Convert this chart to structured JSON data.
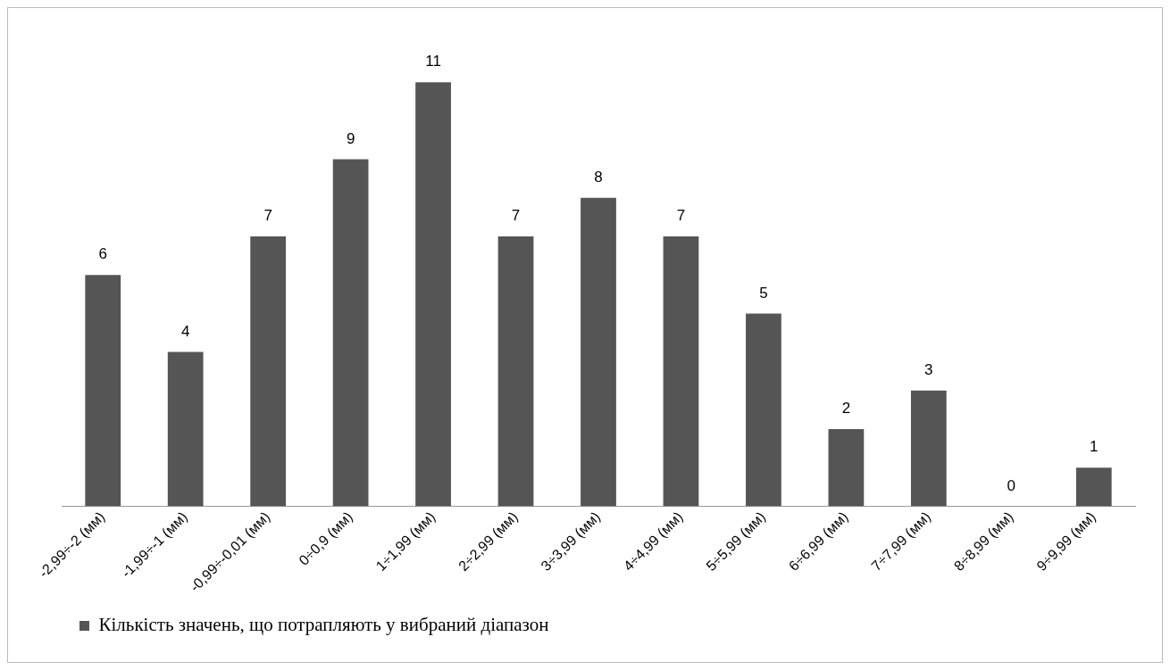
{
  "chart_data": {
    "type": "bar",
    "categories": [
      "-2,99÷-2 (мм)",
      "-1,99÷-1 (мм)",
      "-0,99÷-0,01 (мм)",
      "0÷0,9 (мм)",
      "1÷1,99 (мм)",
      "2÷2,99 (мм)",
      "3÷3,99 (мм)",
      "4÷4,99 (мм)",
      "5÷5,99 (мм)",
      "6÷6,99 (мм)",
      "7÷7,99 (мм)",
      "8÷8,99 (мм)",
      "9÷9,99 (мм)"
    ],
    "series": [
      {
        "name": "Кількість значень, що потрапляють у вибраний діапазон",
        "color": "#555555",
        "values": [
          6,
          4,
          7,
          9,
          11,
          7,
          8,
          7,
          5,
          2,
          3,
          0,
          1
        ]
      }
    ],
    "data_labels": true,
    "legend": "bottom left",
    "grid": false,
    "tick_labels": "x"
  }
}
